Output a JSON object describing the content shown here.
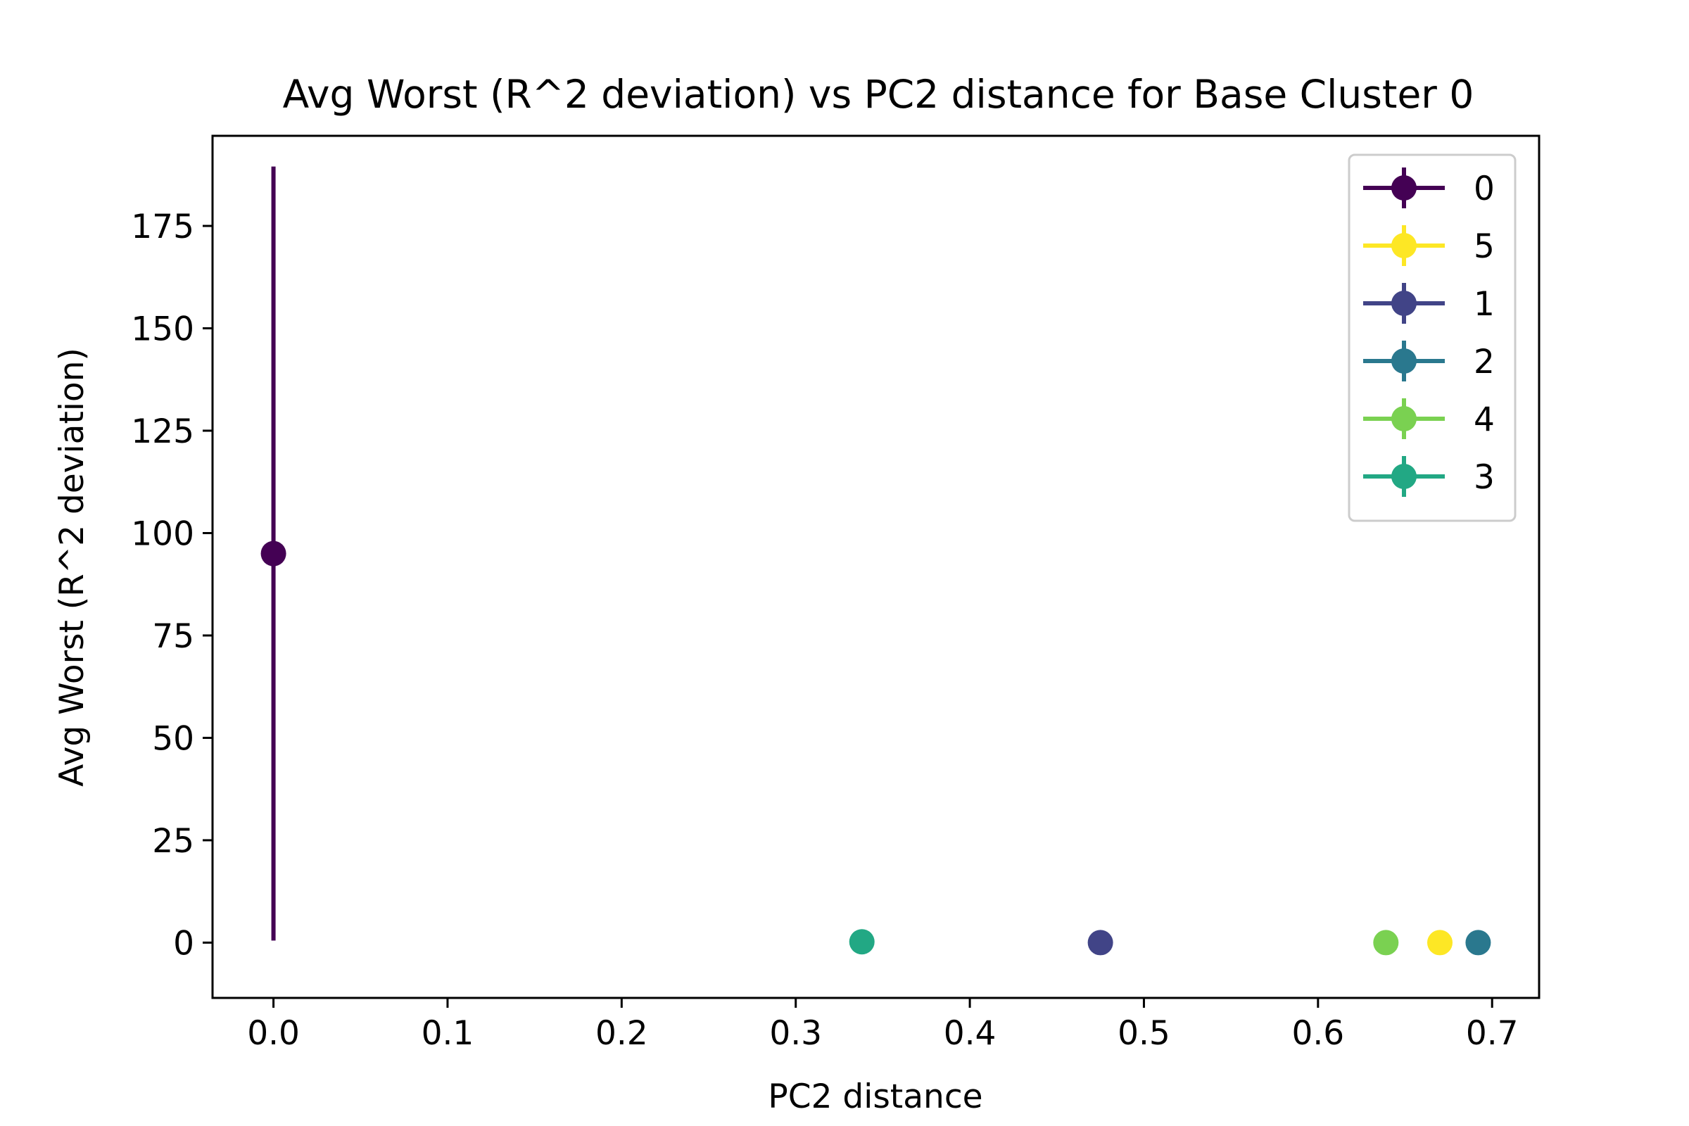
{
  "chart_data": {
    "type": "scatter",
    "title": "Avg Worst (R^2 deviation) vs PC2 distance for Base Cluster 0",
    "xlabel": "PC2 distance",
    "ylabel": "Avg Worst (R^2 deviation)",
    "xlim": [
      -0.035,
      0.727
    ],
    "ylim": [
      -13.5,
      197
    ],
    "xticks": [
      0.0,
      0.1,
      0.2,
      0.3,
      0.4,
      0.5,
      0.6,
      0.7
    ],
    "xtick_labels": [
      "0.0",
      "0.1",
      "0.2",
      "0.3",
      "0.4",
      "0.5",
      "0.6",
      "0.7"
    ],
    "yticks": [
      0,
      25,
      50,
      75,
      100,
      125,
      150,
      175
    ],
    "ytick_labels": [
      "0",
      "25",
      "50",
      "75",
      "100",
      "125",
      "150",
      "175"
    ],
    "grid": false,
    "legend_position": "top-right",
    "series": [
      {
        "name": "0",
        "color": "#440154",
        "x": 0.0,
        "y": 95.0,
        "err": 94.5
      },
      {
        "name": "5",
        "color": "#fde725",
        "x": 0.67,
        "y": 0.0,
        "err": 0
      },
      {
        "name": "1",
        "color": "#414487",
        "x": 0.475,
        "y": 0.0,
        "err": 0
      },
      {
        "name": "2",
        "color": "#2a788e",
        "x": 0.692,
        "y": 0.0,
        "err": 0
      },
      {
        "name": "4",
        "color": "#7ad151",
        "x": 0.639,
        "y": 0.0,
        "err": 0
      },
      {
        "name": "3",
        "color": "#22a884",
        "x": 0.338,
        "y": 0.2,
        "err": 0
      }
    ]
  }
}
